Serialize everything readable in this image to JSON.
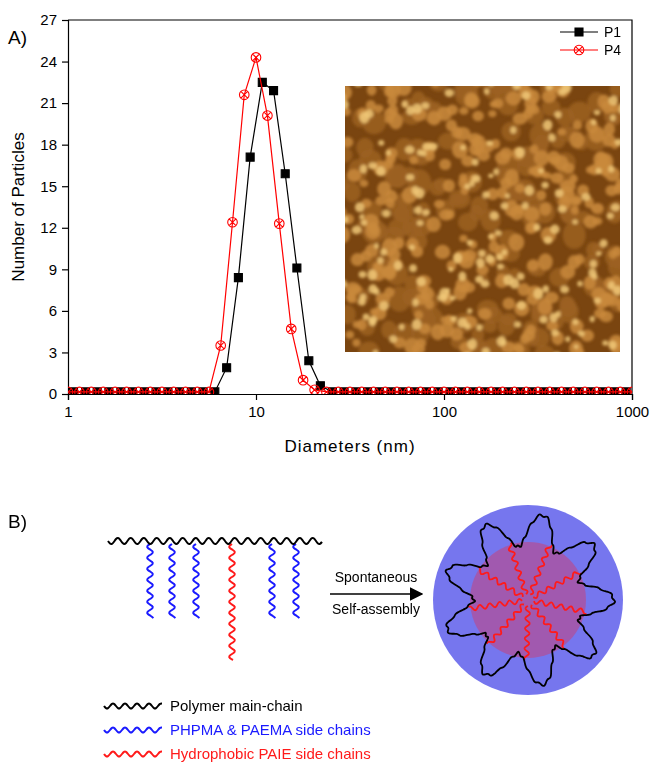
{
  "panels": [
    "A)",
    "B)"
  ],
  "chart_data": {
    "type": "line",
    "xlabel": "Diameters (nm)",
    "ylabel": "Number of Particles",
    "log": "x",
    "xlim": [
      1,
      1000
    ],
    "xticks": [
      1,
      10,
      100,
      1000
    ],
    "ylim": [
      0,
      27
    ],
    "yticks": [
      0,
      3,
      6,
      9,
      12,
      15,
      18,
      21,
      24,
      27
    ],
    "legend": "upper right",
    "series": [
      {
        "name": "P1",
        "color": "#000000",
        "marker": "square",
        "line_style": "solid",
        "x": [
          1.07,
          1.24,
          1.43,
          1.65,
          1.91,
          2.2,
          2.55,
          2.94,
          3.4,
          3.92,
          4.53,
          5.23,
          6.04,
          6.98,
          8.06,
          9.31,
          10.8,
          12.4,
          14.3,
          16.5,
          19.1,
          22,
          25.5,
          29.4,
          34,
          39.2,
          45.3,
          52.3,
          60.4,
          69.8,
          80.6,
          93.1,
          108,
          124,
          143,
          165,
          191,
          220,
          255,
          294,
          340,
          392,
          453,
          523,
          604,
          698,
          806,
          931
        ],
        "values": [
          0.15,
          0.15,
          0.15,
          0.15,
          0.15,
          0.15,
          0.15,
          0.15,
          0.15,
          0.15,
          0.15,
          0.15,
          0.15,
          1.9,
          8.4,
          17.1,
          22.5,
          21.9,
          15.9,
          9.1,
          2.4,
          0.6,
          0.15,
          0.15,
          0.15,
          0.15,
          0.15,
          0.15,
          0.15,
          0.15,
          0.15,
          0.15,
          0.15,
          0.15,
          0.15,
          0.15,
          0.15,
          0.15,
          0.15,
          0.15,
          0.15,
          0.15,
          0.15,
          0.15,
          0.15,
          0.15,
          0.15,
          0.15
        ]
      },
      {
        "name": "P4",
        "color": "#ff0000",
        "marker": "circle-x",
        "line_style": "solid",
        "x": [
          1,
          1.15,
          1.33,
          1.54,
          1.78,
          2.05,
          2.37,
          2.74,
          3.16,
          3.65,
          4.22,
          4.87,
          5.62,
          6.49,
          7.5,
          8.66,
          10,
          11.5,
          13.3,
          15.4,
          17.8,
          20.5,
          23.7,
          27.4,
          31.6,
          36.5,
          42.2,
          48.7,
          56.2,
          64.9,
          75,
          86.6,
          100,
          115,
          133,
          154,
          178,
          205,
          237,
          274,
          316,
          365,
          422,
          487,
          562,
          649,
          750,
          866,
          1000
        ],
        "values": [
          0.15,
          0.15,
          0.15,
          0.15,
          0.15,
          0.15,
          0.15,
          0.15,
          0.15,
          0.15,
          0.15,
          0.15,
          0.15,
          3.5,
          12.4,
          21.6,
          24.3,
          20.1,
          12.3,
          4.7,
          1.0,
          0.3,
          0.15,
          0.15,
          0.15,
          0.15,
          0.15,
          0.15,
          0.15,
          0.15,
          0.15,
          0.15,
          0.15,
          0.15,
          0.15,
          0.15,
          0.15,
          0.15,
          0.15,
          0.15,
          0.15,
          0.15,
          0.15,
          0.15,
          0.15,
          0.15,
          0.15,
          0.15,
          0.15
        ]
      }
    ]
  },
  "diagram": {
    "arrow_label": [
      "Spontaneous",
      "Self-assembly"
    ],
    "legend": [
      {
        "label": "Polymer main-chain",
        "color": "#000000"
      },
      {
        "label": "PHPMA & PAEMA side chains",
        "color": "#1a1aff"
      },
      {
        "label": "Hydrophobic PAIE side chains",
        "color": "#ff1a1a"
      }
    ]
  }
}
